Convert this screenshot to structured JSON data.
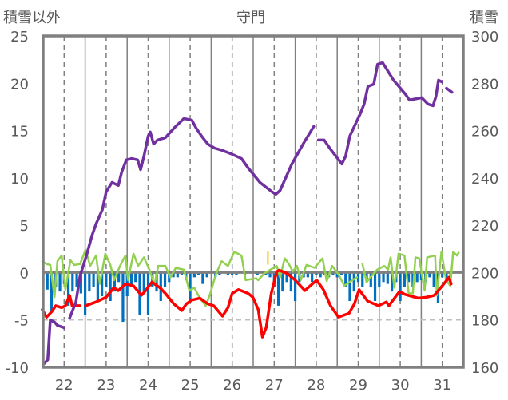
{
  "chart_data": {
    "type": "line",
    "title": "守門",
    "ylabel_left": "積雪以外",
    "ylabel_right": "積雪",
    "xlim": [
      21.5,
      31.5
    ],
    "ylim_left": [
      -10,
      25
    ],
    "ylim_right": [
      160,
      300
    ],
    "x_ticks": [
      "22",
      "23",
      "24",
      "25",
      "26",
      "27",
      "28",
      "29",
      "30",
      "31"
    ],
    "y_ticks_left": [
      "-10",
      "-5",
      "0",
      "5",
      "10",
      "15",
      "20",
      "25"
    ],
    "y_ticks_right": [
      "160",
      "180",
      "200",
      "220",
      "240",
      "260",
      "280",
      "300"
    ],
    "colors": {
      "snow": "#7030a0",
      "temp": "#ff0000",
      "green": "#92d050",
      "bars": "#0070c0",
      "orange": "#ffc000",
      "axis": "#808080"
    },
    "series": [
      {
        "name": "snow_depth",
        "axis": "right",
        "color": "snow",
        "segments": [
          [
            [
              21.52,
              161.5
            ],
            [
              21.61,
              163.2
            ],
            [
              21.67,
              180.0
            ],
            [
              21.77,
              179.1
            ],
            [
              21.84,
              177.7
            ],
            [
              22.0,
              176.7
            ]
          ],
          [
            [
              22.13,
              180.8
            ],
            [
              22.28,
              187.5
            ],
            [
              22.38,
              198.7
            ],
            [
              22.53,
              207.1
            ],
            [
              22.66,
              215.5
            ],
            [
              22.76,
              220.6
            ],
            [
              22.91,
              226.6
            ],
            [
              23.0,
              234.1
            ],
            [
              23.14,
              238.1
            ],
            [
              23.29,
              236.8
            ],
            [
              23.37,
              242.5
            ],
            [
              23.48,
              247.6
            ],
            [
              23.61,
              248.2
            ],
            [
              23.75,
              247.6
            ],
            [
              23.82,
              243.5
            ],
            [
              23.9,
              249.2
            ],
            [
              24.0,
              257.7
            ],
            [
              24.05,
              259.4
            ],
            [
              24.13,
              254.3
            ],
            [
              24.22,
              256.0
            ],
            [
              24.41,
              257.0
            ],
            [
              24.62,
              261.1
            ],
            [
              24.85,
              265.1
            ],
            [
              25.04,
              264.4
            ],
            [
              25.14,
              261.1
            ],
            [
              25.27,
              257.7
            ],
            [
              25.42,
              254.3
            ],
            [
              25.58,
              252.6
            ],
            [
              25.77,
              251.6
            ],
            [
              25.96,
              250.3
            ],
            [
              26.22,
              248.2
            ],
            [
              26.38,
              244.2
            ],
            [
              26.66,
              238.1
            ],
            [
              26.95,
              234.1
            ],
            [
              27.04,
              233.1
            ],
            [
              27.14,
              234.7
            ],
            [
              27.42,
              245.9
            ],
            [
              27.71,
              255.0
            ],
            [
              27.94,
              261.7
            ]
          ],
          [
            [
              28.05,
              256.0
            ],
            [
              28.19,
              256.0
            ],
            [
              28.32,
              252.6
            ],
            [
              28.61,
              245.9
            ],
            [
              28.7,
              249.2
            ],
            [
              28.8,
              257.7
            ],
            [
              29.04,
              266.8
            ],
            [
              29.14,
              271.2
            ],
            [
              29.23,
              278.6
            ],
            [
              29.37,
              279.6
            ],
            [
              29.46,
              288.0
            ],
            [
              29.58,
              288.7
            ],
            [
              29.84,
              281.3
            ],
            [
              30.13,
              275.2
            ],
            [
              30.22,
              272.9
            ],
            [
              30.51,
              273.9
            ],
            [
              30.66,
              271.2
            ],
            [
              30.78,
              270.5
            ],
            [
              30.85,
              274.5
            ],
            [
              30.91,
              281.3
            ],
            [
              30.99,
              280.6
            ]
          ],
          [
            [
              31.1,
              277.9
            ],
            [
              31.23,
              276.2
            ]
          ]
        ]
      },
      {
        "name": "temperature",
        "axis": "left",
        "color": "temp",
        "segments": [
          [
            [
              21.48,
              -3.9
            ],
            [
              21.58,
              -4.7
            ],
            [
              21.71,
              -4.1
            ],
            [
              21.8,
              -3.5
            ],
            [
              21.94,
              -3.7
            ],
            [
              22.03,
              -3.5
            ],
            [
              22.13,
              -2.4
            ],
            [
              22.19,
              -3.5
            ],
            [
              22.38,
              -3.5
            ]
          ],
          [
            [
              22.51,
              -3.5
            ],
            [
              22.76,
              -3.1
            ],
            [
              23.0,
              -2.6
            ],
            [
              23.18,
              -1.6
            ],
            [
              23.29,
              -1.9
            ],
            [
              23.46,
              -1.2
            ],
            [
              23.65,
              -1.4
            ],
            [
              23.84,
              -2.4
            ],
            [
              23.94,
              -1.9
            ],
            [
              24.09,
              -1.0
            ],
            [
              24.28,
              -1.6
            ],
            [
              24.41,
              -2.2
            ],
            [
              24.61,
              -3.3
            ],
            [
              24.8,
              -4.0
            ],
            [
              24.91,
              -3.3
            ],
            [
              25.04,
              -2.9
            ],
            [
              25.23,
              -2.7
            ],
            [
              25.42,
              -3.3
            ],
            [
              25.56,
              -3.5
            ],
            [
              25.77,
              -4.6
            ],
            [
              25.9,
              -3.7
            ],
            [
              26.0,
              -2.2
            ],
            [
              26.15,
              -1.8
            ],
            [
              26.38,
              -2.2
            ],
            [
              26.49,
              -2.6
            ],
            [
              26.62,
              -3.9
            ],
            [
              26.72,
              -6.8
            ],
            [
              26.81,
              -5.8
            ],
            [
              26.93,
              -2.2
            ],
            [
              27.06,
              0.1
            ],
            [
              27.12,
              0.25
            ],
            [
              27.31,
              -0.1
            ],
            [
              27.5,
              -0.8
            ],
            [
              27.73,
              -1.9
            ],
            [
              28.01,
              -0.8
            ],
            [
              28.17,
              -1.8
            ],
            [
              28.34,
              -3.5
            ],
            [
              28.53,
              -4.7
            ],
            [
              28.78,
              -4.3
            ],
            [
              28.91,
              -3.3
            ],
            [
              29.02,
              -1.8
            ],
            [
              29.22,
              -3.0
            ],
            [
              29.48,
              -3.5
            ],
            [
              29.67,
              -3.1
            ],
            [
              29.73,
              -3.5
            ],
            [
              29.98,
              -2.0
            ],
            [
              30.11,
              -2.3
            ],
            [
              30.43,
              -2.7
            ],
            [
              30.63,
              -2.6
            ],
            [
              30.81,
              -2.4
            ],
            [
              31.0,
              -1.4
            ],
            [
              31.16,
              -0.5
            ],
            [
              31.21,
              -1.2
            ]
          ]
        ]
      },
      {
        "name": "green_series",
        "axis": "left",
        "color": "green",
        "segments": [
          [
            [
              21.48,
              1.2
            ],
            [
              21.58,
              0.9
            ],
            [
              21.67,
              0.8
            ],
            [
              21.77,
              -2.6
            ],
            [
              21.84,
              1.2
            ],
            [
              21.94,
              1.8
            ],
            [
              22.03,
              -1.8
            ],
            [
              22.15,
              1.3
            ],
            [
              22.24,
              0.8
            ],
            [
              22.38,
              0.9
            ],
            [
              22.51,
              2.4
            ],
            [
              22.62,
              0.7
            ],
            [
              22.76,
              1.8
            ],
            [
              22.85,
              -1.2
            ],
            [
              22.98,
              2.0
            ],
            [
              23.1,
              0.8
            ],
            [
              23.19,
              -0.8
            ],
            [
              23.33,
              0.7
            ],
            [
              23.46,
              1.8
            ],
            [
              23.52,
              -0.8
            ],
            [
              23.65,
              2.0
            ],
            [
              23.76,
              0.7
            ],
            [
              23.9,
              1.6
            ],
            [
              24.03,
              0.3
            ],
            [
              24.15,
              -1.3
            ],
            [
              24.24,
              0.7
            ],
            [
              24.41,
              0.7
            ],
            [
              24.53,
              -0.5
            ],
            [
              24.66,
              0.5
            ],
            [
              24.85,
              0.3
            ],
            [
              24.98,
              -1.9
            ],
            [
              25.1,
              -1.6
            ],
            [
              25.23,
              -2.7
            ],
            [
              25.37,
              -3.5
            ],
            [
              25.48,
              -2.2
            ],
            [
              25.61,
              -0.2
            ],
            [
              25.75,
              1.2
            ],
            [
              25.9,
              0.7
            ],
            [
              26.05,
              2.2
            ],
            [
              26.22,
              1.8
            ],
            [
              26.32,
              -0.8
            ],
            [
              26.57,
              -0.6
            ],
            [
              26.62,
              -0.8
            ],
            [
              26.76,
              -0.1
            ],
            [
              26.91,
              0.3
            ],
            [
              27.06,
              0.7
            ],
            [
              27.14,
              -0.5
            ],
            [
              27.25,
              1.5
            ],
            [
              27.35,
              0.9
            ],
            [
              27.44,
              0.1
            ],
            [
              27.54,
              0.7
            ],
            [
              27.63,
              -0.8
            ],
            [
              27.77,
              0.8
            ],
            [
              27.96,
              0.5
            ],
            [
              28.15,
              1.5
            ],
            [
              28.25,
              -0.9
            ],
            [
              28.38,
              0.7
            ],
            [
              28.53,
              -0.2
            ],
            [
              28.67,
              -1.4
            ],
            [
              28.86,
              -0.8
            ],
            [
              28.97,
              -0.5
            ]
          ],
          [
            [
              29.1,
              0.9
            ],
            [
              29.2,
              -1.0
            ],
            [
              29.29,
              -0.5
            ],
            [
              29.45,
              0.3
            ],
            [
              29.62,
              0.7
            ],
            [
              29.71,
              0.3
            ],
            [
              29.77,
              1.6
            ],
            [
              29.86,
              -1.6
            ],
            [
              29.96,
              2.0
            ],
            [
              30.1,
              1.8
            ],
            [
              30.2,
              -2.2
            ],
            [
              30.3,
              -2.2
            ],
            [
              30.36,
              1.6
            ],
            [
              30.45,
              1.5
            ],
            [
              30.58,
              -1.9
            ],
            [
              30.64,
              1.6
            ],
            [
              30.83,
              1.8
            ],
            [
              30.87,
              -2.4
            ],
            [
              30.98,
              2.2
            ],
            [
              31.09,
              -0.8
            ],
            [
              31.19,
              -1.4
            ],
            [
              31.26,
              2.2
            ],
            [
              31.35,
              1.8
            ],
            [
              31.39,
              2.1
            ]
          ]
        ]
      },
      {
        "name": "orange_series",
        "axis": "left",
        "color": "orange",
        "segments": [
          [
            [
              26.85,
              2.2
            ],
            [
              26.85,
              0.9
            ]
          ]
        ]
      }
    ],
    "bars": {
      "name": "bar_series",
      "axis": "left",
      "color": "bars",
      "x_start": 21.5,
      "x_step": 0.1,
      "values": [
        -1.0,
        -1.8,
        -4.2,
        -1.5,
        -2.0,
        -1.2,
        -3.5,
        -2.0,
        -1.5,
        -2.2,
        -4.5,
        -2.0,
        -1.5,
        -3.0,
        -2.5,
        -1.5,
        -3.0,
        -2.0,
        -1.0,
        -5.2,
        -2.5,
        -1.5,
        -1.0,
        -4.5,
        -2.0,
        -4.5,
        -1.5,
        -2.0,
        -3.0,
        -1.5,
        -1.0,
        -0.5,
        -0.5,
        -0.3,
        -0.8,
        -3.0,
        -0.5,
        -0.3,
        -1.2,
        -0.5,
        0,
        -0.5,
        -0.3,
        0,
        -0.3,
        -0.3,
        -0.3,
        0,
        -0.3,
        0,
        0,
        -0.3,
        0,
        -0.3,
        -0.5,
        -1.5,
        -3.5,
        -2.0,
        -1.0,
        -2.0,
        -3.0,
        -1.0,
        -0.5,
        -0.5,
        -1.0,
        -0.3,
        -0.5,
        -0.3,
        -0.5,
        -0.3,
        -0.5,
        -0.3,
        -1.5,
        -3.0,
        -2.0,
        -1.0,
        -1.5,
        -1.0,
        -1.5,
        -3.0,
        -1.5,
        -1.0,
        -1.2,
        -2.0,
        -1.0,
        -3.0,
        -1.5,
        -1.0,
        -1.5,
        -1.0,
        -0.8,
        -1.0,
        -0.5,
        -1.5,
        -3.2,
        -0.5,
        -0.8,
        -0.5
      ]
    }
  }
}
